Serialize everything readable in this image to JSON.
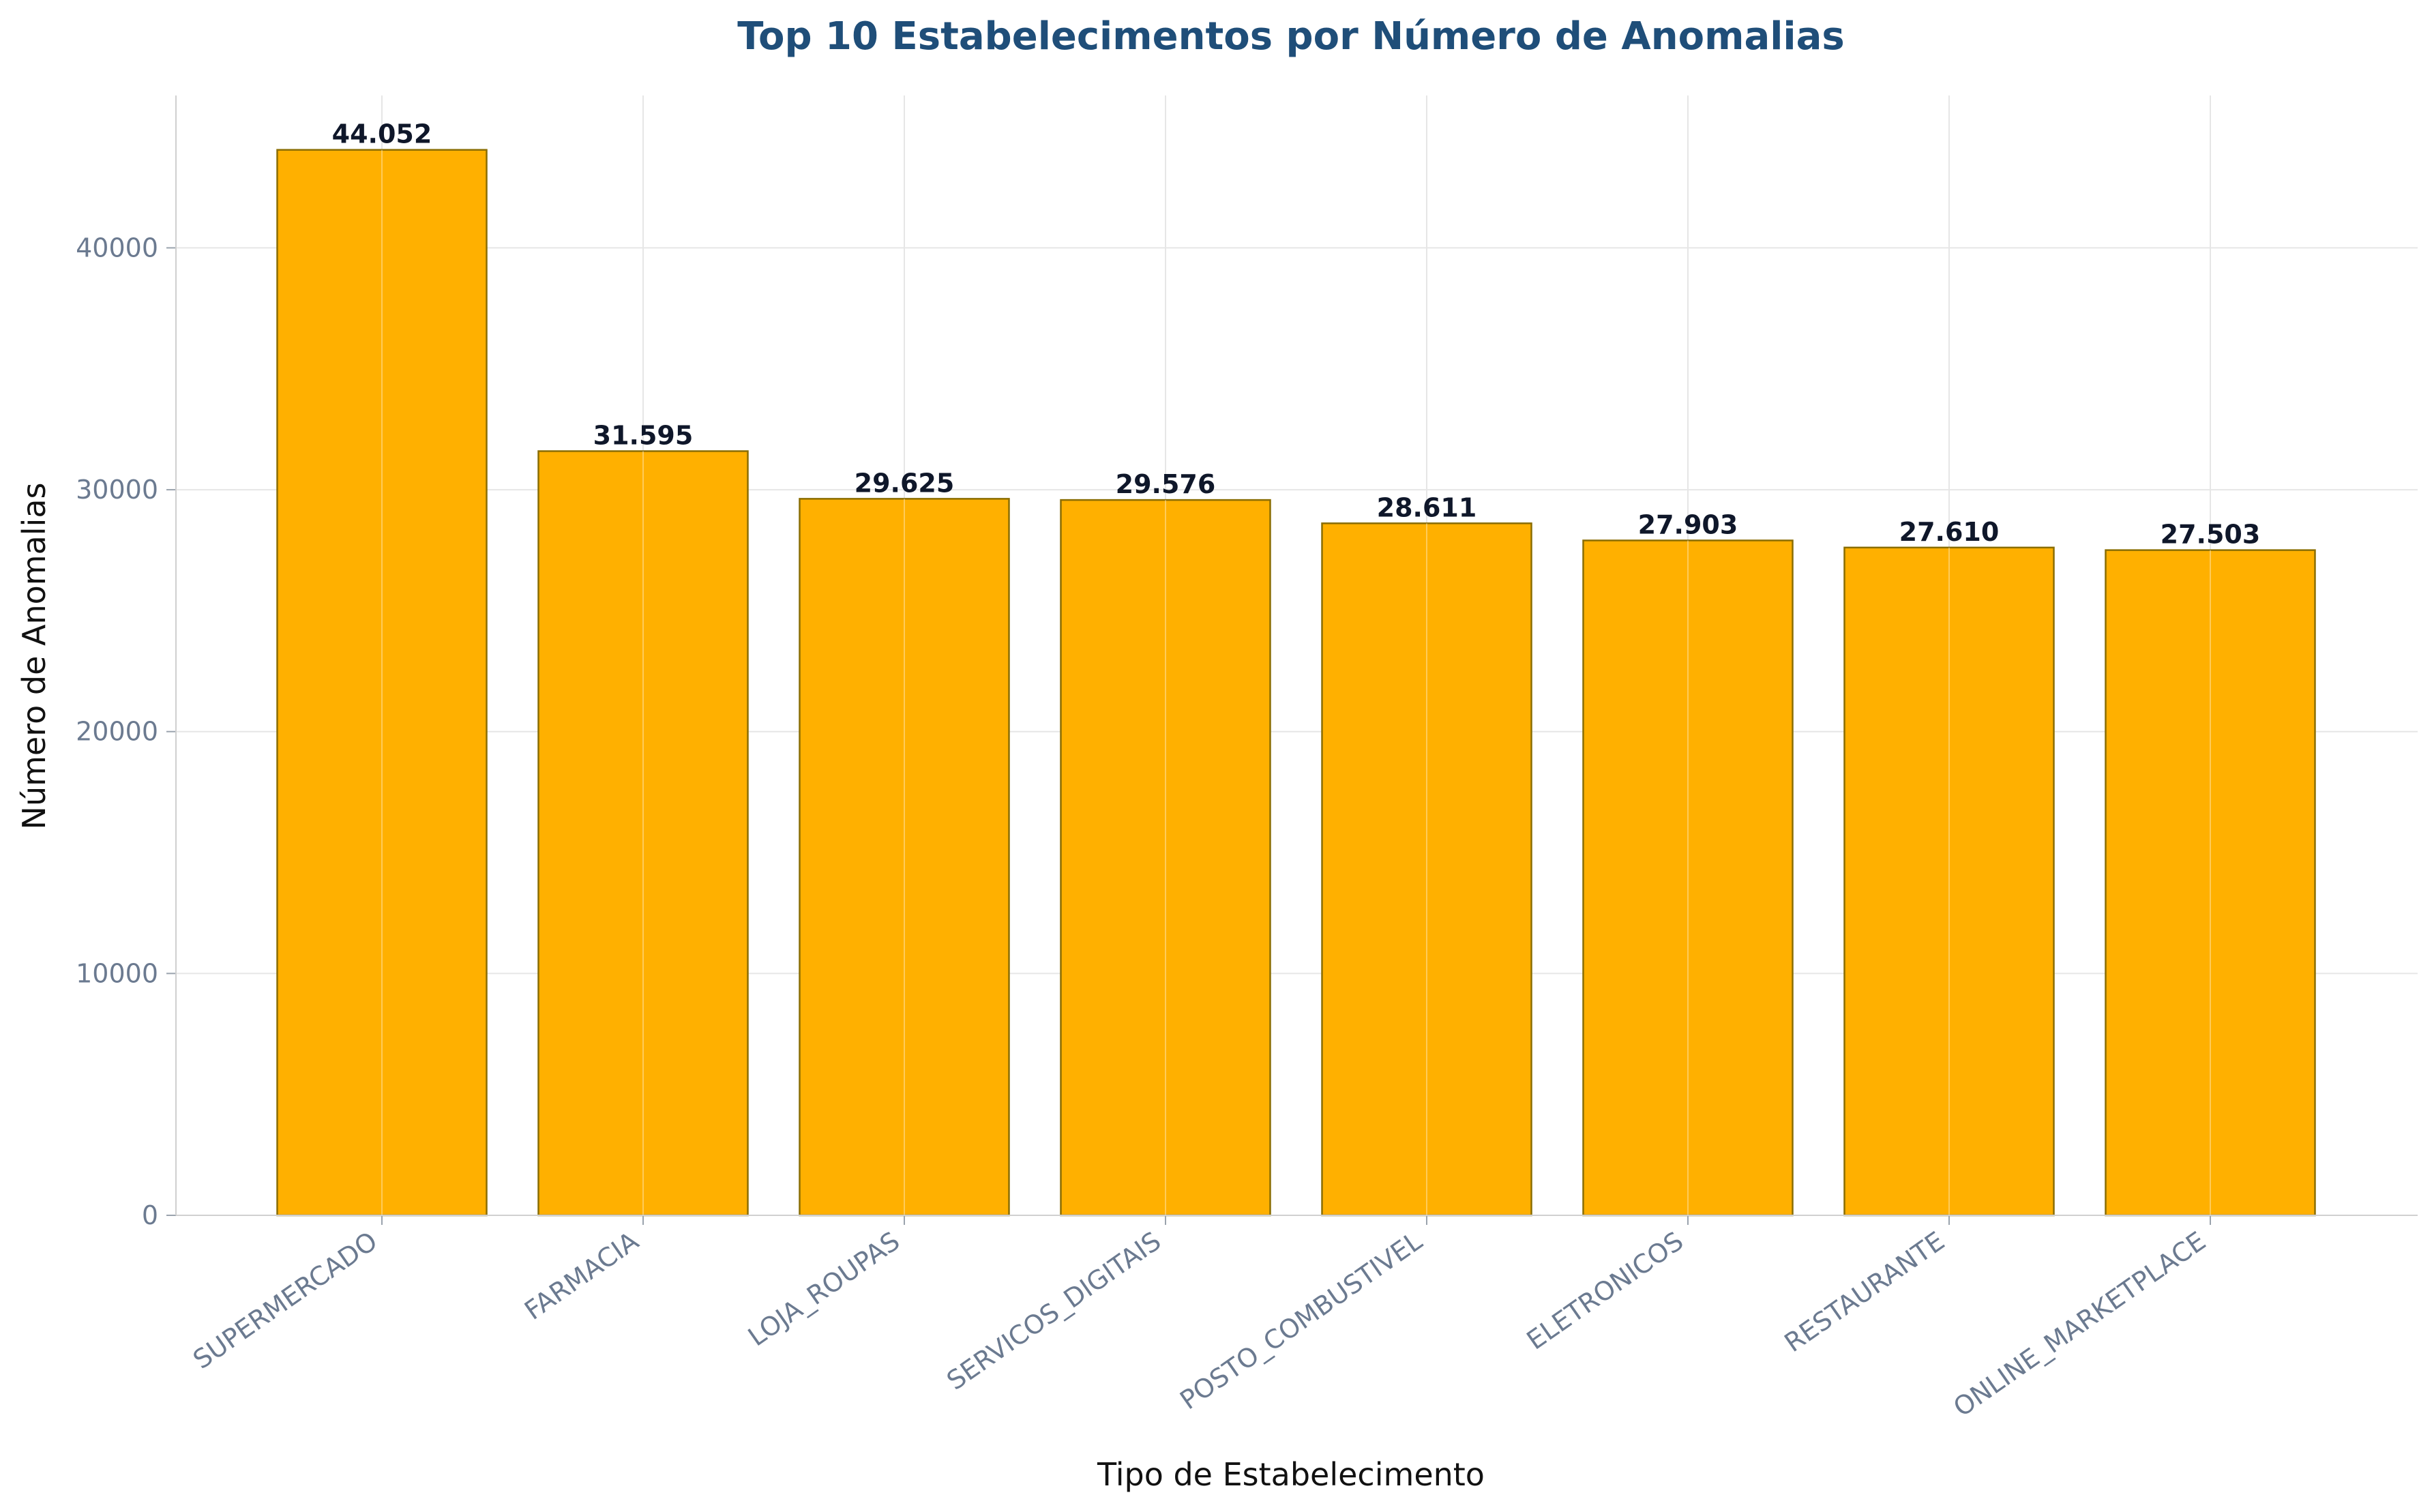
{
  "chart_data": {
    "type": "bar",
    "title": "Top 10 Estabelecimentos por Número de Anomalias",
    "xlabel": "Tipo de Estabelecimento",
    "ylabel": "Número de Anomalias",
    "categories": [
      "SUPERMERCADO",
      "FARMACIA",
      "LOJA_ROUPAS",
      "SERVICOS_DIGITAIS",
      "POSTO_COMBUSTIVEL",
      "ELETRONICOS",
      "RESTAURANTE",
      "ONLINE_MARKETPLACE"
    ],
    "values": [
      44052,
      31595,
      29625,
      29576,
      28611,
      27903,
      27610,
      27503
    ],
    "value_labels": [
      "44.052",
      "31.595",
      "29.625",
      "29.576",
      "28.611",
      "27.903",
      "27.610",
      "27.503"
    ],
    "ylim": [
      0,
      46300
    ],
    "yticks": [
      0,
      10000,
      20000,
      30000,
      40000
    ],
    "ytick_labels": [
      "0",
      "10000",
      "20000",
      "30000",
      "40000"
    ],
    "grid": true,
    "colors": {
      "bar_fill": "#ffb000",
      "bar_edge": "#8a6d00",
      "title": "#1f4e79"
    }
  }
}
